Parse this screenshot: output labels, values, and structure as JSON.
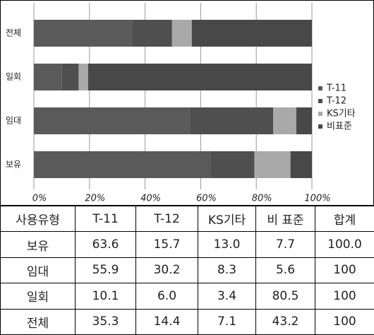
{
  "chart_data": {
    "type": "stacked_barh",
    "categories": [
      "전체",
      "일회",
      "임대",
      "보유"
    ],
    "series": [
      {
        "name": "T-11",
        "color": "#5a5a5a",
        "values": [
          35.3,
          10.1,
          55.9,
          63.6
        ]
      },
      {
        "name": "T-12",
        "color": "#4f4f4f",
        "values": [
          14.4,
          6.0,
          30.2,
          15.7
        ]
      },
      {
        "name": "KS기타",
        "color": "#a9a9a9",
        "values": [
          7.1,
          3.4,
          8.3,
          13.0
        ]
      },
      {
        "name": "비표준",
        "color": "#484848",
        "values": [
          43.2,
          80.5,
          5.6,
          7.7
        ]
      }
    ],
    "xlim": [
      0,
      100
    ],
    "xticks": [
      {
        "value": 0,
        "label": "0%"
      },
      {
        "value": 20,
        "label": "20%"
      },
      {
        "value": 40,
        "label": "40%"
      },
      {
        "value": 60,
        "label": "60%"
      },
      {
        "value": 80,
        "label": "80%"
      },
      {
        "value": 100,
        "label": "100%"
      }
    ],
    "grid": true,
    "legend": "right"
  },
  "table": {
    "header": [
      "사용유형",
      "T-11",
      "T-12",
      "KS기타",
      "비 표준",
      "합계"
    ],
    "rows": [
      [
        "보유",
        "63.6",
        "15.7",
        "13.0",
        "7.7",
        "100.0"
      ],
      [
        "임대",
        "55.9",
        "30.2",
        "8.3",
        "5.6",
        "100"
      ],
      [
        "일회",
        "10.1",
        "6.0",
        "3.4",
        "80.5",
        "100"
      ],
      [
        "전체",
        "35.3",
        "14.4",
        "7.1",
        "43.2",
        "100"
      ]
    ]
  }
}
